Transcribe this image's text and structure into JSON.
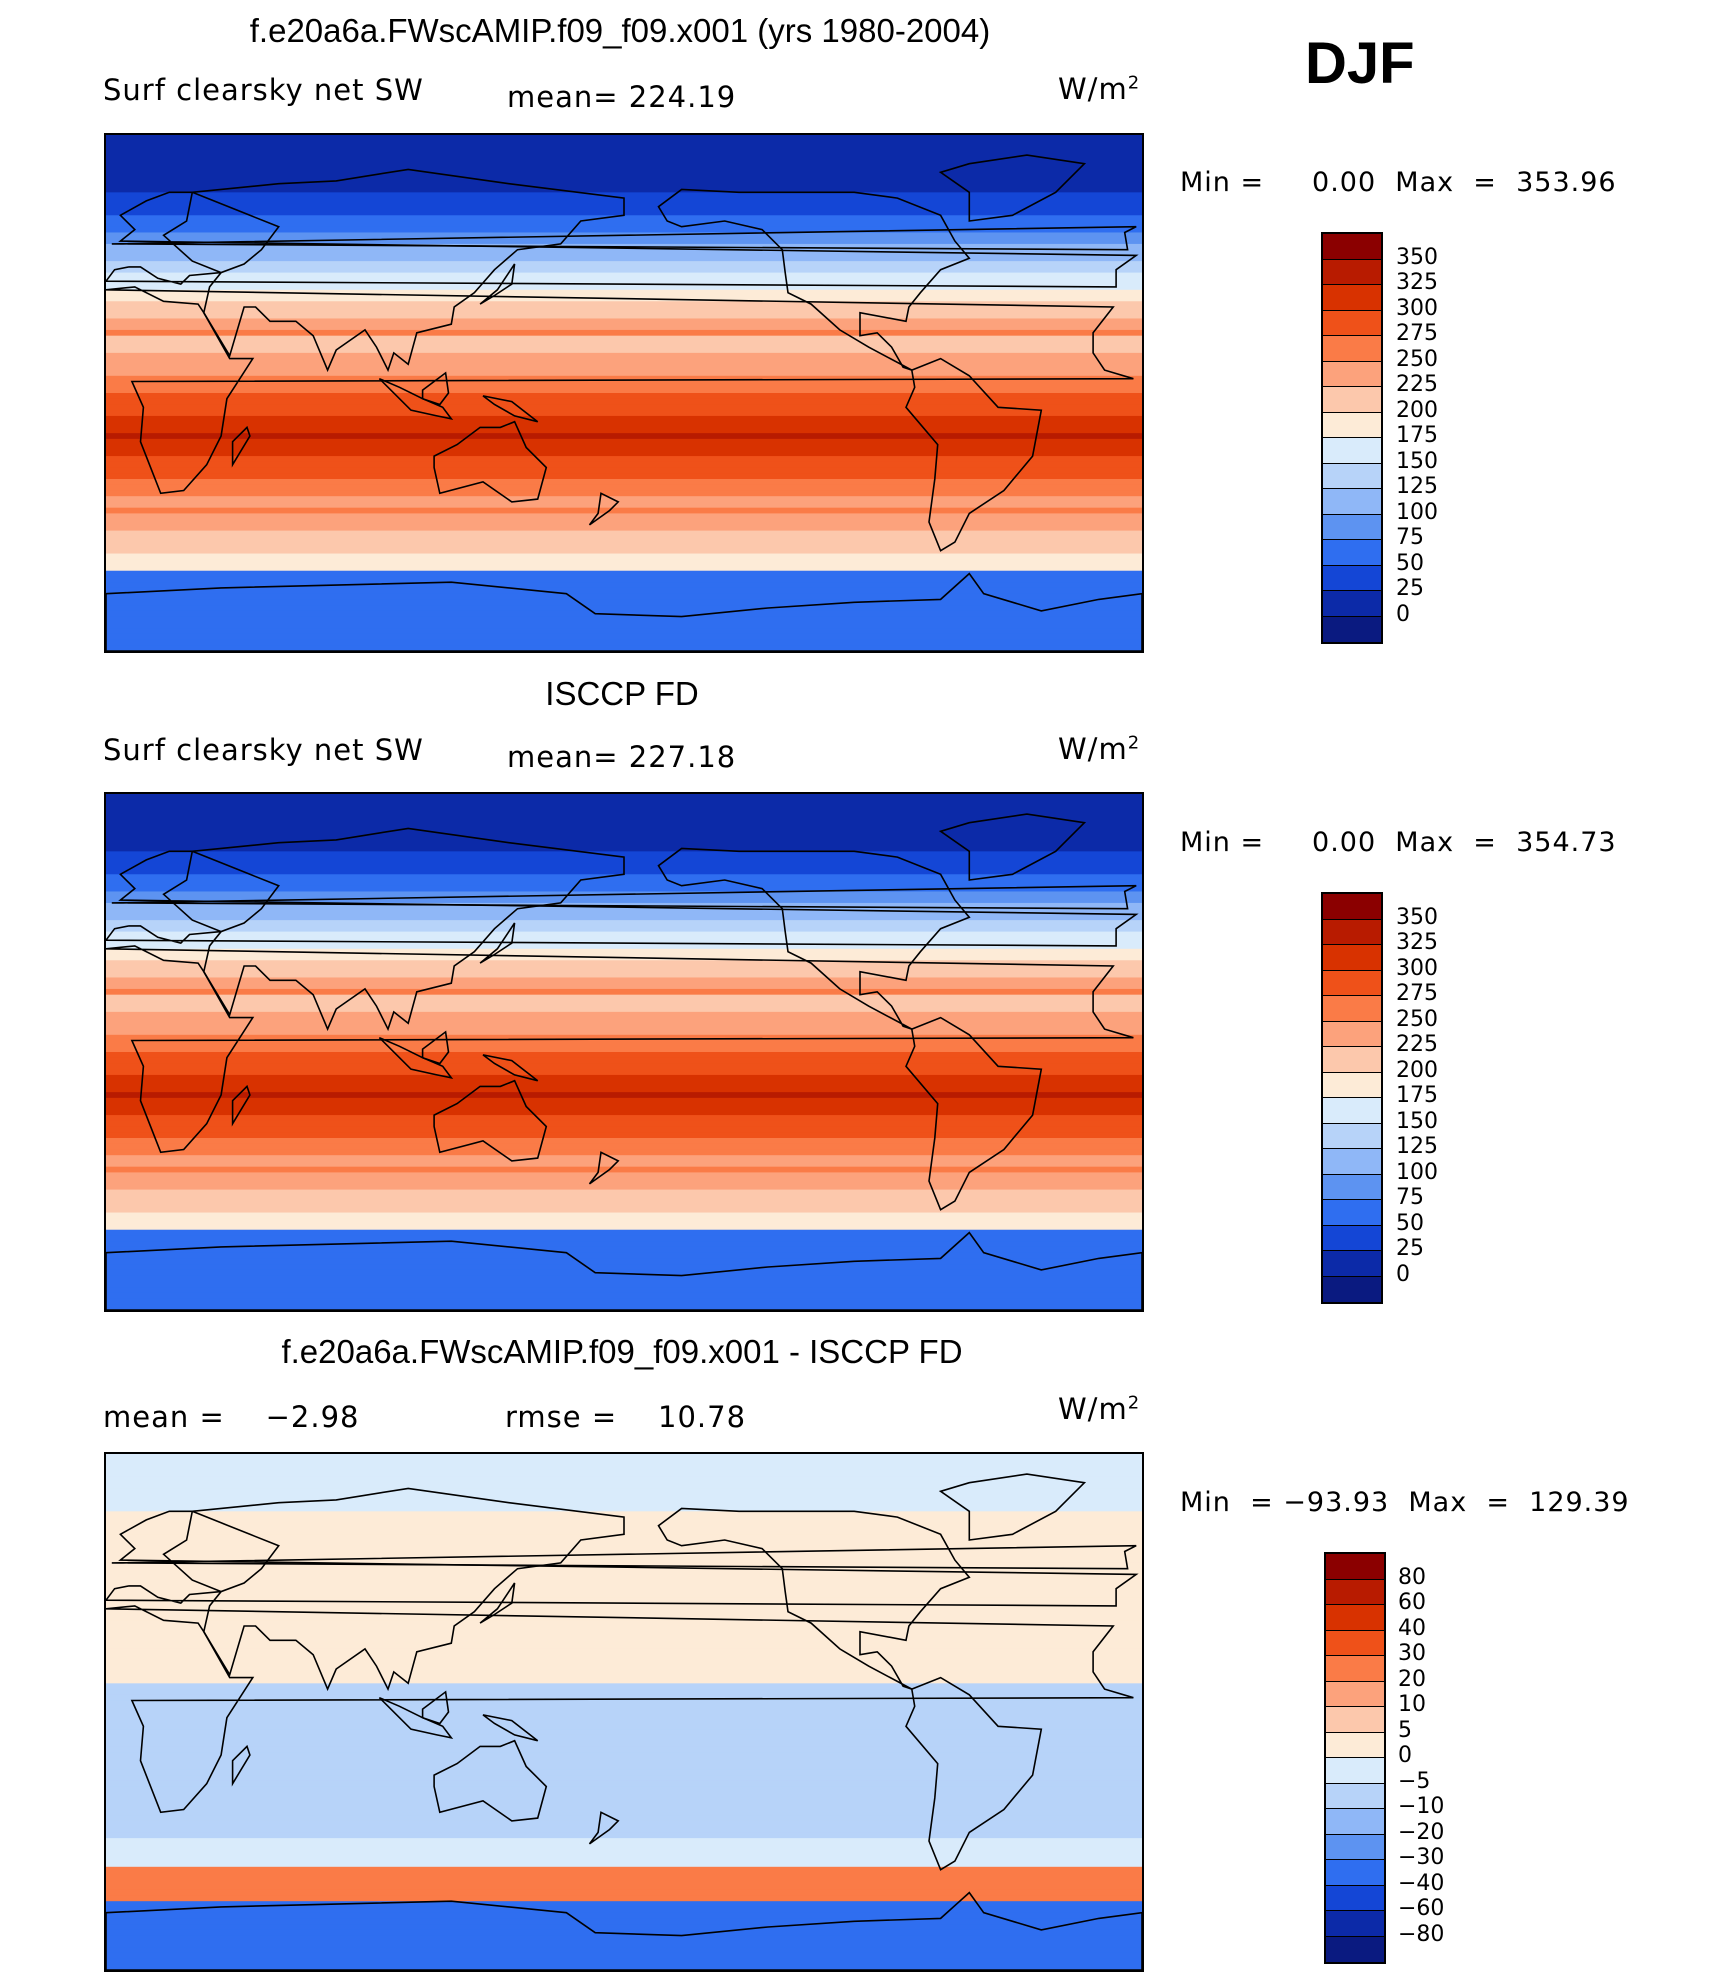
{
  "season": "DJF",
  "panels": [
    {
      "title": "f.e20a6a.FWscAMIP.f09_f09.x001 (yrs 1980-2004)",
      "left_label": "Surf clearsky net SW",
      "center_label": "mean= 224.19",
      "units": "W/m²",
      "minmax": "Min =     0.00  Max  =  353.96",
      "map_type": "model",
      "colorbar": {
        "levels": [
          "350",
          "325",
          "300",
          "275",
          "250",
          "225",
          "200",
          "175",
          "150",
          "125",
          "100",
          "75",
          "50",
          "25",
          "0"
        ],
        "colors": [
          "#8b0000",
          "#b81b00",
          "#d83200",
          "#ef5119",
          "#fa7b47",
          "#fca27c",
          "#fcc8ac",
          "#fdebd7",
          "#d9ebfb",
          "#b7d3f9",
          "#8fb7f7",
          "#5d93f1",
          "#2f6ef0",
          "#1446d6",
          "#0c2aa8",
          "#0a1a80"
        ]
      }
    },
    {
      "title": "ISCCP FD",
      "left_label": "Surf clearsky net SW",
      "center_label": "mean= 227.18",
      "units": "W/m²",
      "minmax": "Min =     0.00  Max  =  354.73",
      "map_type": "obs",
      "colorbar": {
        "levels": [
          "350",
          "325",
          "300",
          "275",
          "250",
          "225",
          "200",
          "175",
          "150",
          "125",
          "100",
          "75",
          "50",
          "25",
          "0"
        ],
        "colors": [
          "#8b0000",
          "#b81b00",
          "#d83200",
          "#ef5119",
          "#fa7b47",
          "#fca27c",
          "#fcc8ac",
          "#fdebd7",
          "#d9ebfb",
          "#b7d3f9",
          "#8fb7f7",
          "#5d93f1",
          "#2f6ef0",
          "#1446d6",
          "#0c2aa8",
          "#0a1a80"
        ]
      }
    },
    {
      "title": "f.e20a6a.FWscAMIP.f09_f09.x001 - ISCCP FD",
      "left_label": "mean =    −2.98",
      "center_label": "rmse =    10.78",
      "units": "W/m²",
      "minmax": "Min  = −93.93  Max  =  129.39",
      "map_type": "diff",
      "colorbar": {
        "levels": [
          "80",
          "60",
          "40",
          "30",
          "20",
          "10",
          "5",
          "0",
          "−5",
          "−10",
          "−20",
          "−30",
          "−40",
          "−60",
          "−80"
        ],
        "colors": [
          "#8b0000",
          "#b81b00",
          "#d83200",
          "#ef5119",
          "#fa7b47",
          "#fca27c",
          "#fcc8ac",
          "#fdebd7",
          "#d9ebfb",
          "#b7d3f9",
          "#8fb7f7",
          "#5d93f1",
          "#2f6ef0",
          "#1446d6",
          "#0c2aa8",
          "#0a1a80"
        ]
      }
    }
  ]
}
